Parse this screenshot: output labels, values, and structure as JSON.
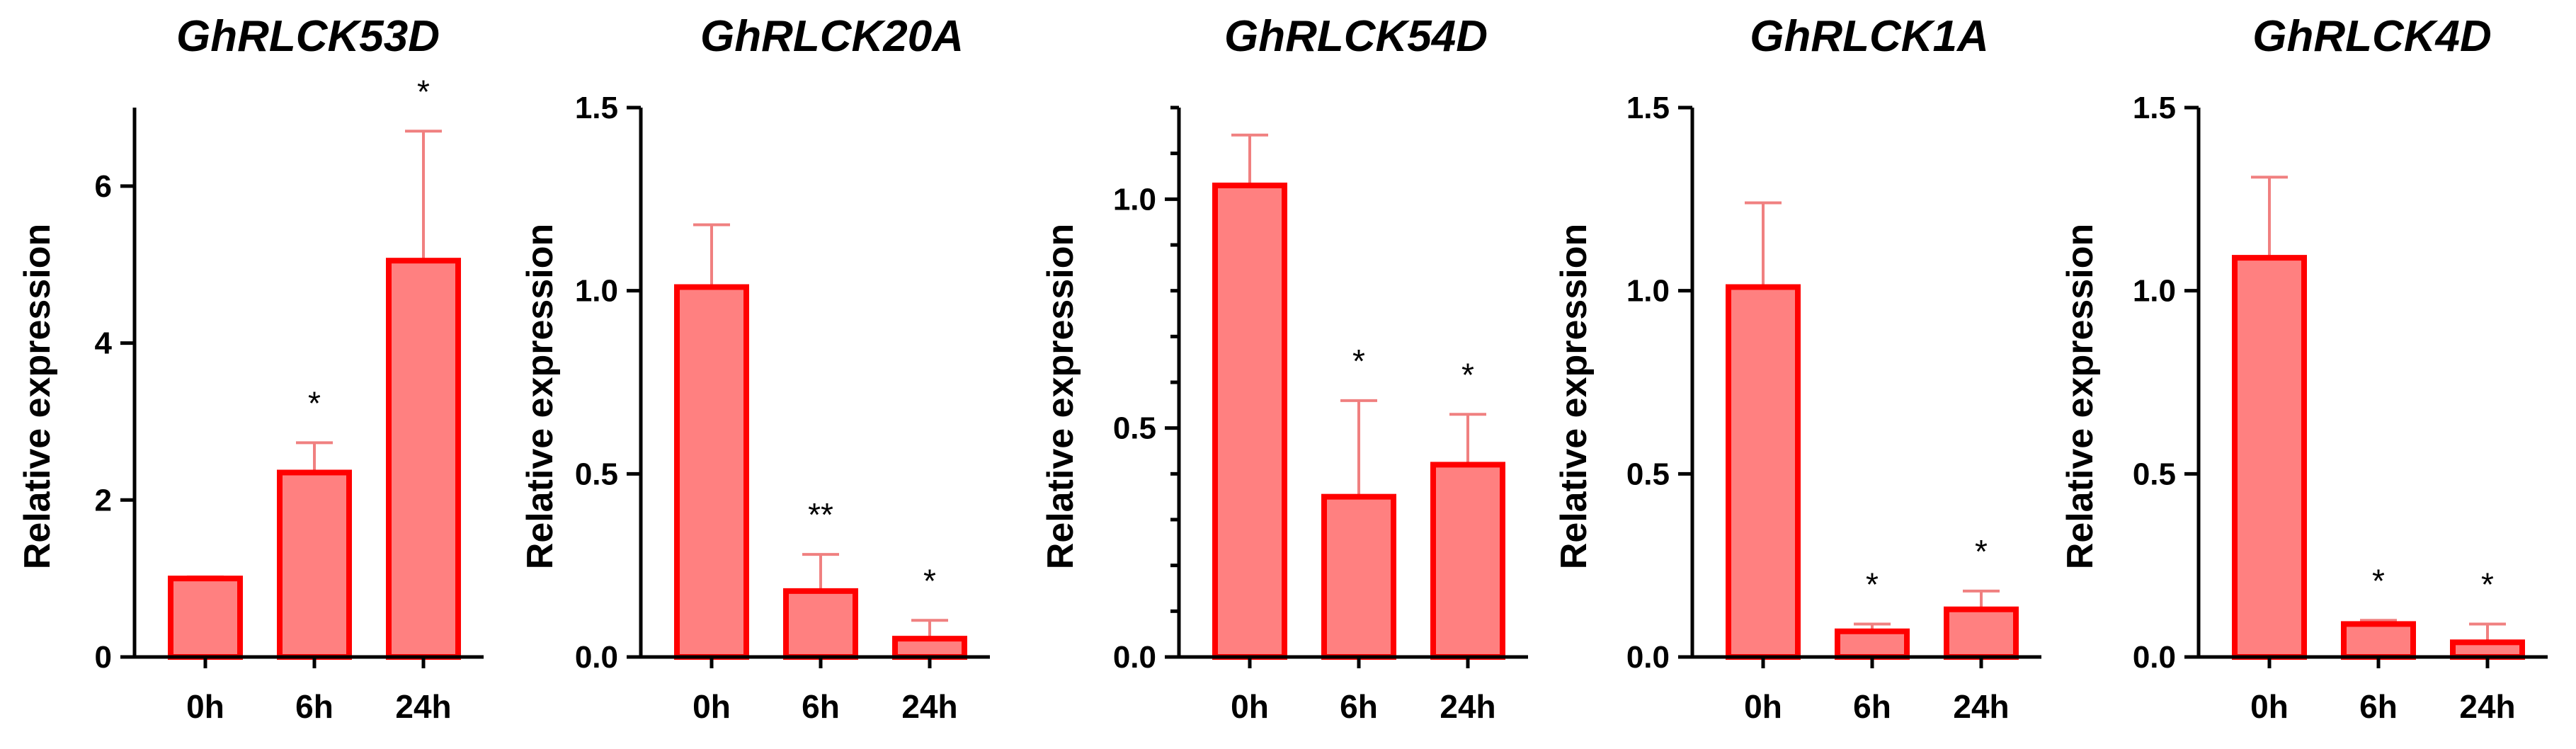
{
  "chart_data": [
    {
      "type": "bar",
      "title": "GhRLCK53D",
      "ylabel": "Relative expression",
      "xlabel": "",
      "categories": [
        "0h",
        "6h",
        "24h"
      ],
      "values": [
        1.0,
        2.35,
        5.05
      ],
      "errors": [
        0.02,
        0.38,
        1.65
      ],
      "significance": [
        "",
        "*",
        "*"
      ],
      "ylim": [
        0,
        7
      ],
      "yticks": [
        0,
        2,
        4,
        6
      ],
      "ytick_labels": [
        "0",
        "2",
        "4",
        "6"
      ],
      "minor_yticks": [],
      "bar_color": "#ff8080",
      "edge_color": "#ff0000"
    },
    {
      "type": "bar",
      "title": "GhRLCK20A",
      "ylabel": "Relative expression",
      "xlabel": "",
      "categories": [
        "0h",
        "6h",
        "24h"
      ],
      "values": [
        1.01,
        0.18,
        0.05
      ],
      "errors": [
        0.17,
        0.1,
        0.05
      ],
      "significance": [
        "",
        "**",
        "*"
      ],
      "ylim": [
        0,
        1.5
      ],
      "yticks": [
        0,
        0.5,
        1.0,
        1.5
      ],
      "ytick_labels": [
        "0.0",
        "0.5",
        "1.0",
        "1.5"
      ],
      "minor_yticks": [],
      "bar_color": "#ff8080",
      "edge_color": "#ff0000"
    },
    {
      "type": "bar",
      "title": "GhRLCK54D",
      "ylabel": "Relative expression",
      "xlabel": "",
      "categories": [
        "0h",
        "6h",
        "24h"
      ],
      "values": [
        1.03,
        0.35,
        0.42
      ],
      "errors": [
        0.11,
        0.21,
        0.11
      ],
      "significance": [
        "",
        "*",
        "*"
      ],
      "ylim": [
        0,
        1.2
      ],
      "yticks": [
        0,
        0.5,
        1.0
      ],
      "ytick_labels": [
        "0.0",
        "0.5",
        "1.0"
      ],
      "minor_yticks": [
        0.1,
        0.2,
        0.3,
        0.4,
        0.6,
        0.7,
        0.8,
        0.9,
        1.1,
        1.2
      ],
      "bar_color": "#ff8080",
      "edge_color": "#ff0000"
    },
    {
      "type": "bar",
      "title": "GhRLCK1A",
      "ylabel": "Relative expression",
      "xlabel": "",
      "categories": [
        "0h",
        "6h",
        "24h"
      ],
      "values": [
        1.01,
        0.07,
        0.13
      ],
      "errors": [
        0.23,
        0.02,
        0.05
      ],
      "significance": [
        "",
        "*",
        "*"
      ],
      "ylim": [
        0,
        1.5
      ],
      "yticks": [
        0,
        0.5,
        1.0,
        1.5
      ],
      "ytick_labels": [
        "0.0",
        "0.5",
        "1.0",
        "1.5"
      ],
      "minor_yticks": [],
      "bar_color": "#ff8080",
      "edge_color": "#ff0000"
    },
    {
      "type": "bar",
      "title": "GhRLCK4D",
      "ylabel": "Relative expression",
      "xlabel": "",
      "categories": [
        "0h",
        "6h",
        "24h"
      ],
      "values": [
        1.09,
        0.09,
        0.04
      ],
      "errors": [
        0.22,
        0.01,
        0.05
      ],
      "significance": [
        "",
        "*",
        "*"
      ],
      "ylim": [
        0,
        1.5
      ],
      "yticks": [
        0,
        0.5,
        1.0,
        1.5
      ],
      "ytick_labels": [
        "0.0",
        "0.5",
        "1.0",
        "1.5"
      ],
      "minor_yticks": [],
      "bar_color": "#ff8080",
      "edge_color": "#ff0000"
    }
  ]
}
